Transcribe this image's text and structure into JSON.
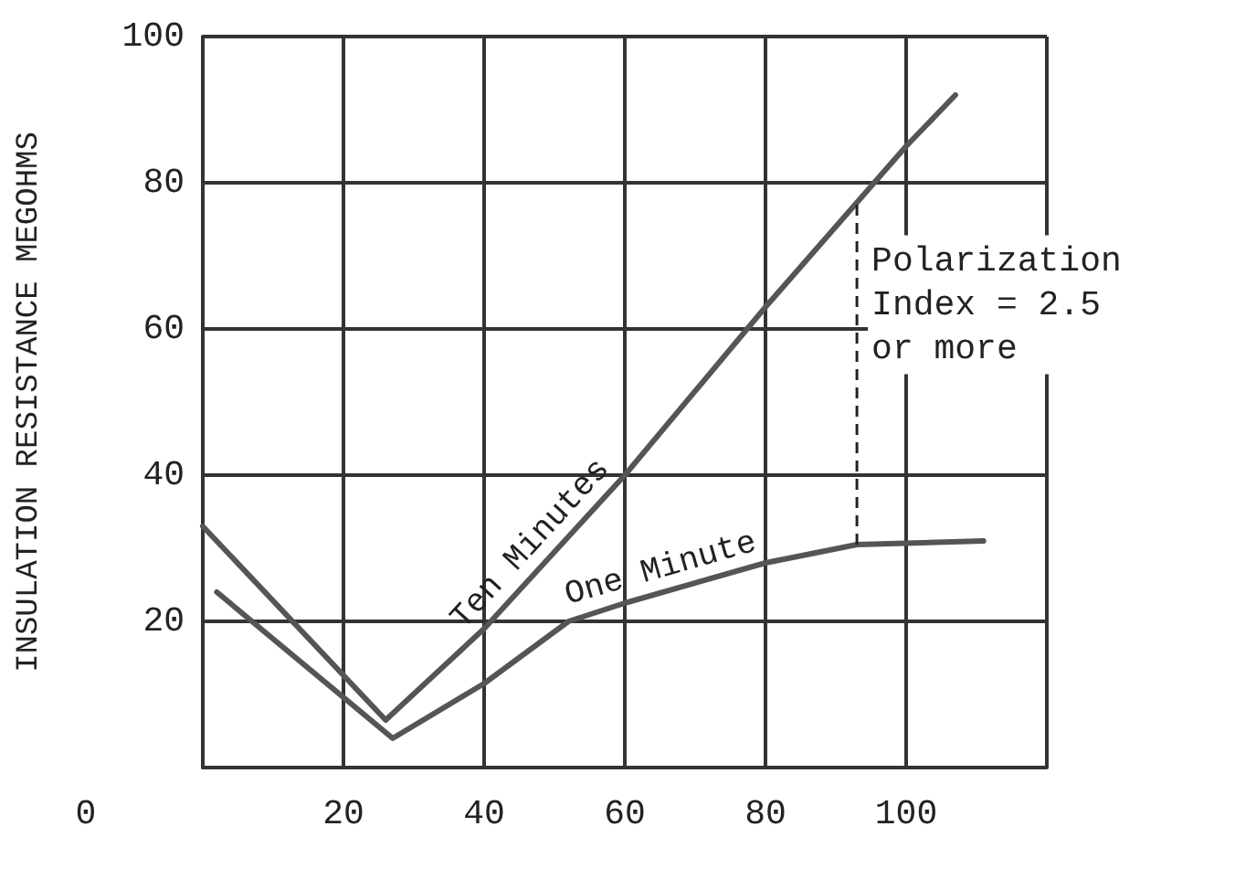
{
  "chart_data": {
    "type": "line",
    "ylabel": "INSULATION RESISTANCE MEGOHMS",
    "series": [
      {
        "name": "Ten Minutes",
        "color": "#555555",
        "x": [
          0,
          26,
          40,
          60,
          80,
          100,
          107
        ],
        "values": [
          33,
          6.5,
          19,
          40,
          63,
          85,
          92
        ]
      },
      {
        "name": "One Minute",
        "color": "#555555",
        "x": [
          2,
          27,
          40,
          52,
          60,
          80,
          93,
          111
        ],
        "values": [
          24,
          4,
          11.5,
          20,
          22.5,
          28,
          30.5,
          31
        ]
      }
    ],
    "xlim": [
      0,
      120
    ],
    "xticks": [
      {
        "value": 0,
        "label": null
      },
      20,
      40,
      60,
      80,
      100,
      {
        "value": 120,
        "label": null
      }
    ],
    "ylim": [
      0,
      100
    ],
    "yticks": [
      {
        "value": 0,
        "label": null
      },
      20,
      40,
      60,
      80,
      100
    ],
    "ref_lines": [
      {
        "axis": "x",
        "value": 93,
        "line_style": "dashed"
      }
    ],
    "annotations": [
      "0",
      "Polarization\nIndex = 2.5\nor more"
    ],
    "grid": true,
    "legend": false,
    "marker": "none",
    "line_style": "solid"
  }
}
